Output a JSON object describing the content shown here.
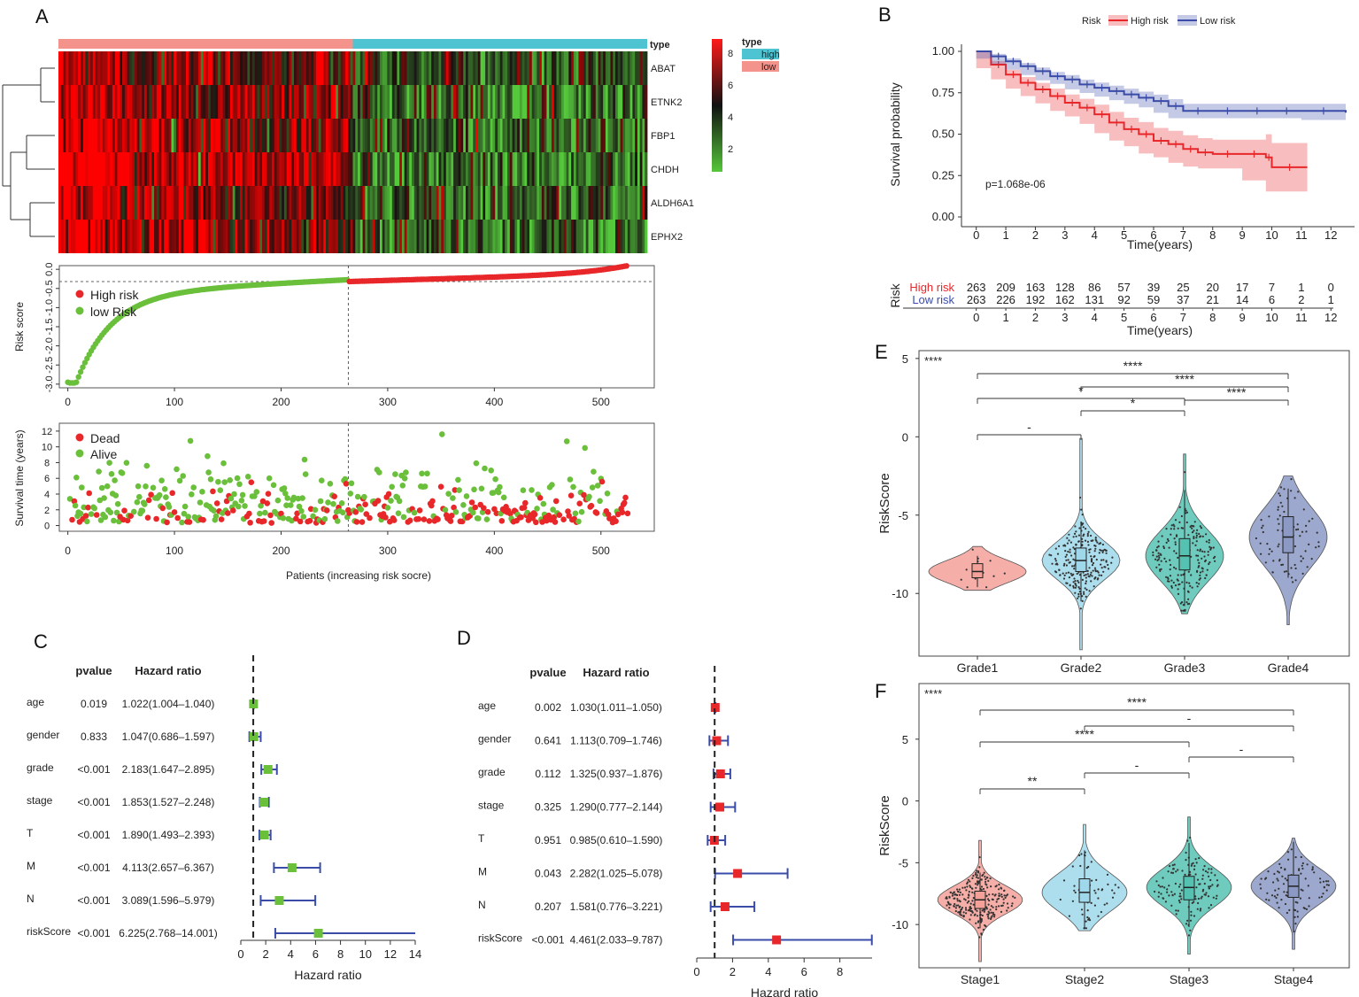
{
  "figure": {
    "panel_labels": [
      "A",
      "B",
      "C",
      "D",
      "E",
      "F"
    ]
  },
  "chart_data": [
    {
      "id": "A-heatmap",
      "type": "heatmap",
      "genes": [
        "ABAT",
        "ETNK2",
        "FBP1",
        "CHDH",
        "ALDH6A1",
        "EPHX2"
      ],
      "annotation_label": "type",
      "legend_title": "type",
      "legend_groups": [
        {
          "label": "high",
          "color": "#4ec4d2"
        },
        {
          "label": "low",
          "color": "#f4938c"
        }
      ],
      "color_scale": {
        "ticks": [
          8,
          6,
          4,
          2
        ],
        "high_color": "#ff1a1a",
        "mid_color": "#111111",
        "low_color": "#55c73a"
      },
      "n_high": 263,
      "n_low": 263,
      "group_order": [
        "low",
        "high"
      ]
    },
    {
      "id": "A-riskscore",
      "type": "scatter",
      "ylabel": "Risk score",
      "yticks": [
        "0.0",
        "-0.5",
        "-1.0",
        "-1.5",
        "-2.0",
        "-2.5",
        "-3.0"
      ],
      "ylim": [
        -3.0,
        0.0
      ],
      "xticks": [
        "0",
        "100",
        "200",
        "300",
        "400",
        "500"
      ],
      "xlim": [
        -8,
        550
      ],
      "cutoff_index": 263,
      "cutoff_value": -0.32,
      "legend": [
        {
          "label": "High risk",
          "color": "#e8272a"
        },
        {
          "label": "low Risk",
          "color": "#6abf3b"
        }
      ],
      "n": 526
    },
    {
      "id": "A-survival-time",
      "type": "scatter",
      "ylabel": "Survival time (years)",
      "xlabel": "Patients (increasing risk socre)",
      "yticks": [
        "12",
        "10",
        "8",
        "6",
        "4",
        "2",
        "0"
      ],
      "ylim": [
        0,
        12.5
      ],
      "xticks": [
        "0",
        "100",
        "200",
        "300",
        "400",
        "500"
      ],
      "xlim": [
        -8,
        550
      ],
      "legend": [
        {
          "label": "Dead",
          "color": "#e8272a"
        },
        {
          "label": "Alive",
          "color": "#6abf3b"
        }
      ]
    },
    {
      "id": "B-km",
      "type": "line",
      "legend_title": "Risk",
      "series": [
        {
          "name": "High risk",
          "color": "#e8272a",
          "x": [
            0,
            0.5,
            1,
            1.5,
            2,
            2.5,
            3,
            3.5,
            4,
            4.5,
            5,
            5.5,
            6,
            6.5,
            7,
            7.5,
            8,
            9,
            9.8,
            10,
            11.2
          ],
          "y": [
            1.0,
            0.92,
            0.86,
            0.81,
            0.77,
            0.73,
            0.69,
            0.66,
            0.62,
            0.57,
            0.53,
            0.5,
            0.46,
            0.44,
            0.41,
            0.39,
            0.38,
            0.38,
            0.36,
            0.3,
            0.3
          ]
        },
        {
          "name": "Low risk",
          "color": "#3a4ca8",
          "x": [
            0,
            0.5,
            1,
            1.5,
            2,
            2.5,
            3,
            3.5,
            4,
            4.5,
            5,
            5.5,
            6,
            6.5,
            7,
            8,
            9,
            10,
            11,
            12.5
          ],
          "y": [
            1.0,
            0.97,
            0.94,
            0.91,
            0.88,
            0.85,
            0.83,
            0.8,
            0.78,
            0.76,
            0.74,
            0.72,
            0.7,
            0.67,
            0.64,
            0.64,
            0.64,
            0.64,
            0.64,
            0.63
          ]
        }
      ],
      "pvalue_text": "p=1.068e-06",
      "ylabel": "Survival probability",
      "xlabel": "Time(years)",
      "yticks": [
        "1.00",
        "0.75",
        "0.50",
        "0.25",
        "0.00"
      ],
      "xticks": [
        "0",
        "1",
        "2",
        "3",
        "4",
        "5",
        "6",
        "7",
        "8",
        "9",
        "10",
        "11",
        "12"
      ],
      "ylim": [
        0,
        1.0
      ],
      "xlim": [
        -0.5,
        12.8
      ]
    },
    {
      "id": "B-risktable",
      "type": "table",
      "row_label": "Risk",
      "xlabel": "Time(years)",
      "rows": [
        {
          "name": "High risk",
          "color": "#e8272a",
          "values": [
            "263",
            "209",
            "163",
            "128",
            "86",
            "57",
            "39",
            "25",
            "20",
            "17",
            "7",
            "1",
            "0"
          ]
        },
        {
          "name": "Low risk",
          "color": "#3a4ca8",
          "values": [
            "263",
            "226",
            "192",
            "162",
            "131",
            "92",
            "59",
            "37",
            "21",
            "14",
            "6",
            "2",
            "1"
          ]
        }
      ],
      "xticks": [
        "0",
        "1",
        "2",
        "3",
        "4",
        "5",
        "6",
        "7",
        "8",
        "9",
        "10",
        "11",
        "12"
      ]
    },
    {
      "id": "C-forest",
      "type": "scatter",
      "col_pvalue": "pvalue",
      "col_hr": "Hazard ratio",
      "xlabel": "Hazard ratio",
      "xticks": [
        "0",
        "2",
        "4",
        "6",
        "8",
        "10",
        "12",
        "14"
      ],
      "xlim": [
        0,
        14
      ],
      "marker_color": "#6abf3b",
      "line_color": "#3a4ca8",
      "rows": [
        {
          "label": "age",
          "pvalue": "0.019",
          "hr_text": "1.022(1.004–1.040)",
          "hr": 1.022,
          "lo": 1.004,
          "hi": 1.04
        },
        {
          "label": "gender",
          "pvalue": "0.833",
          "hr_text": "1.047(0.686–1.597)",
          "hr": 1.047,
          "lo": 0.686,
          "hi": 1.597
        },
        {
          "label": "grade",
          "pvalue": "<0.001",
          "hr_text": "2.183(1.647–2.895)",
          "hr": 2.183,
          "lo": 1.647,
          "hi": 2.895
        },
        {
          "label": "stage",
          "pvalue": "<0.001",
          "hr_text": "1.853(1.527–2.248)",
          "hr": 1.853,
          "lo": 1.527,
          "hi": 2.248
        },
        {
          "label": "T",
          "pvalue": "<0.001",
          "hr_text": "1.890(1.493–2.393)",
          "hr": 1.89,
          "lo": 1.493,
          "hi": 2.393
        },
        {
          "label": "M",
          "pvalue": "<0.001",
          "hr_text": "4.113(2.657–6.367)",
          "hr": 4.113,
          "lo": 2.657,
          "hi": 6.367
        },
        {
          "label": "N",
          "pvalue": "<0.001",
          "hr_text": "3.089(1.596–5.979)",
          "hr": 3.089,
          "lo": 1.596,
          "hi": 5.979
        },
        {
          "label": "riskScore",
          "pvalue": "<0.001",
          "hr_text": "6.225(2.768–14.001)",
          "hr": 6.225,
          "lo": 2.768,
          "hi": 14.001
        }
      ]
    },
    {
      "id": "D-forest",
      "type": "scatter",
      "col_pvalue": "pvalue",
      "col_hr": "Hazard ratio",
      "xlabel": "Hazard ratio",
      "xticks": [
        "0",
        "2",
        "4",
        "6",
        "8"
      ],
      "xlim": [
        0,
        9.8
      ],
      "marker_color": "#e8272a",
      "line_color": "#3a4ca8",
      "rows": [
        {
          "label": "age",
          "pvalue": "0.002",
          "hr_text": "1.030(1.011–1.050)",
          "hr": 1.03,
          "lo": 1.011,
          "hi": 1.05
        },
        {
          "label": "gender",
          "pvalue": "0.641",
          "hr_text": "1.113(0.709–1.746)",
          "hr": 1.113,
          "lo": 0.709,
          "hi": 1.746
        },
        {
          "label": "grade",
          "pvalue": "0.112",
          "hr_text": "1.325(0.937–1.876)",
          "hr": 1.325,
          "lo": 0.937,
          "hi": 1.876
        },
        {
          "label": "stage",
          "pvalue": "0.325",
          "hr_text": "1.290(0.777–2.144)",
          "hr": 1.29,
          "lo": 0.777,
          "hi": 2.144
        },
        {
          "label": "T",
          "pvalue": "0.951",
          "hr_text": "0.985(0.610–1.590)",
          "hr": 0.985,
          "lo": 0.61,
          "hi": 1.59
        },
        {
          "label": "M",
          "pvalue": "0.043",
          "hr_text": "2.282(1.025–5.078)",
          "hr": 2.282,
          "lo": 1.025,
          "hi": 5.078
        },
        {
          "label": "N",
          "pvalue": "0.207",
          "hr_text": "1.581(0.776–3.221)",
          "hr": 1.581,
          "lo": 0.776,
          "hi": 3.221
        },
        {
          "label": "riskScore",
          "pvalue": "<0.001",
          "hr_text": "4.461(2.033–9.787)",
          "hr": 4.461,
          "lo": 2.033,
          "hi": 9.787
        }
      ]
    },
    {
      "id": "E-violin",
      "type": "scatter",
      "ylabel": "RiskScore",
      "yticks": [
        "5",
        "0",
        "-5",
        "-10"
      ],
      "ylim": [
        -14,
        5.5
      ],
      "global_sig": "****",
      "groups": [
        {
          "name": "Grade1",
          "color": "#f4a199",
          "box": [
            -9.6,
            -9.0,
            -8.6,
            -8.1,
            -7.6
          ],
          "vmin": -9.8,
          "vmax": -7.0,
          "n": 14
        },
        {
          "name": "Grade2",
          "color": "#9fd8ea",
          "box": [
            -10.5,
            -8.6,
            -7.9,
            -7.1,
            -5.4
          ],
          "vmin": -13.6,
          "vmax": -0.1,
          "n": 230
        },
        {
          "name": "Grade3",
          "color": "#55c2b1",
          "box": [
            -10.8,
            -8.5,
            -7.6,
            -6.5,
            -3.4
          ],
          "vmin": -11.3,
          "vmax": -1.1,
          "n": 200
        },
        {
          "name": "Grade4",
          "color": "#8b99c4",
          "box": [
            -9.0,
            -7.4,
            -6.4,
            -5.1,
            -3.3
          ],
          "vmin": -12.0,
          "vmax": -2.5,
          "n": 80
        }
      ],
      "comparisons": [
        {
          "from": 1,
          "to": 2,
          "label": "-"
        },
        {
          "from": 2,
          "to": 3,
          "label": "*"
        },
        {
          "from": 3,
          "to": 4,
          "label": "****"
        },
        {
          "from": 1,
          "to": 3,
          "label": "*"
        },
        {
          "from": 2,
          "to": 4,
          "label": "****"
        },
        {
          "from": 1,
          "to": 4,
          "label": "****"
        }
      ]
    },
    {
      "id": "F-violin",
      "type": "scatter",
      "ylabel": "RiskScore",
      "yticks": [
        "5",
        "0",
        "-5",
        "-10"
      ],
      "ylim": [
        -13.5,
        9.5
      ],
      "global_sig": "****",
      "groups": [
        {
          "name": "Stage1",
          "color": "#f4a199",
          "box": [
            -10.3,
            -8.7,
            -8.0,
            -7.3,
            -5.8
          ],
          "vmin": -13.0,
          "vmax": -3.2,
          "n": 250
        },
        {
          "name": "Stage2",
          "color": "#9fd8ea",
          "box": [
            -10.3,
            -8.2,
            -7.4,
            -6.3,
            -4.0
          ],
          "vmin": -10.5,
          "vmax": -1.9,
          "n": 60
        },
        {
          "name": "Stage3",
          "color": "#55c2b1",
          "box": [
            -10.2,
            -8.0,
            -7.0,
            -6.1,
            -3.4
          ],
          "vmin": -12.4,
          "vmax": -1.3,
          "n": 130
        },
        {
          "name": "Stage4",
          "color": "#8b99c4",
          "box": [
            -10.5,
            -7.8,
            -6.9,
            -6.0,
            -3.3
          ],
          "vmin": -12.0,
          "vmax": -3.0,
          "n": 90
        }
      ],
      "comparisons": [
        {
          "from": 1,
          "to": 2,
          "label": "**"
        },
        {
          "from": 2,
          "to": 3,
          "label": "-"
        },
        {
          "from": 3,
          "to": 4,
          "label": "-"
        },
        {
          "from": 1,
          "to": 3,
          "label": "****"
        },
        {
          "from": 2,
          "to": 4,
          "label": "-"
        },
        {
          "from": 1,
          "to": 4,
          "label": "****"
        }
      ]
    }
  ]
}
